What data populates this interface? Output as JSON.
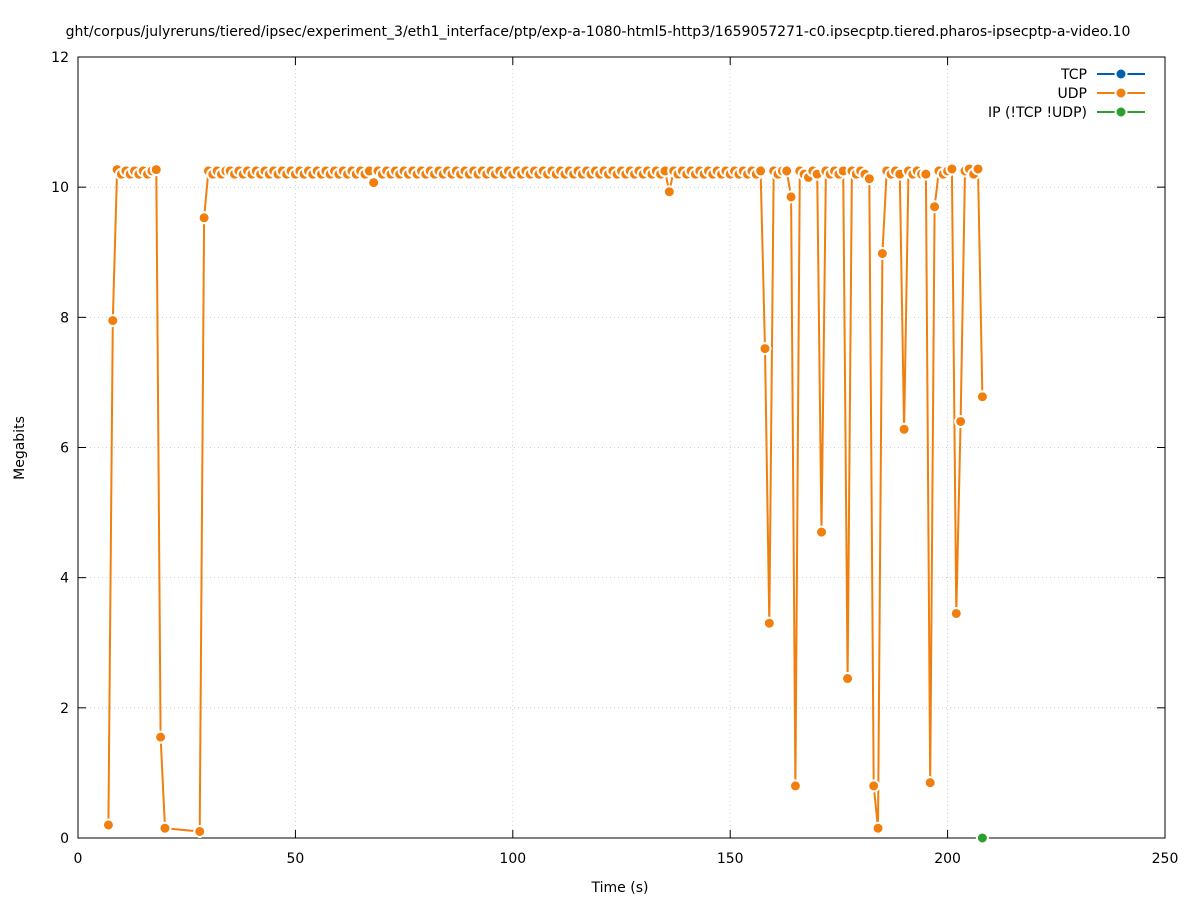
{
  "chart_data": {
    "type": "line",
    "title": "ght/corpus/julyreruns/tiered/ipsec/experiment_3/eth1_interface/ptp/exp-a-1080-html5-http3/1659057271-c0.ipsecptp.tiered.pharos-ipsecptp-a-video.10",
    "xlabel": "Time (s)",
    "ylabel": "Megabits",
    "xlim": [
      0,
      250
    ],
    "ylim": [
      0,
      12
    ],
    "xticks": [
      0,
      50,
      100,
      150,
      200,
      250
    ],
    "yticks": [
      0,
      2,
      4,
      6,
      8,
      10,
      12
    ],
    "grid": true,
    "legend_position": "top-right",
    "series": [
      {
        "name": "TCP",
        "color": "#0060ad",
        "points": []
      },
      {
        "name": "UDP",
        "color": "#f07f0e",
        "points": [
          [
            7,
            0.2
          ],
          [
            8,
            7.95
          ],
          [
            9,
            10.27
          ],
          [
            10,
            10.2
          ],
          [
            11,
            10.25
          ],
          [
            12,
            10.2
          ],
          [
            13,
            10.25
          ],
          [
            14,
            10.2
          ],
          [
            15,
            10.25
          ],
          [
            16,
            10.2
          ],
          [
            17,
            10.25
          ],
          [
            18,
            10.27
          ],
          [
            19,
            1.55
          ],
          [
            20,
            0.15
          ],
          [
            28,
            0.1
          ],
          [
            29,
            9.53
          ],
          [
            30,
            10.25
          ],
          [
            31,
            10.2
          ],
          [
            32,
            10.25
          ],
          [
            33,
            10.2
          ],
          [
            34,
            10.25
          ],
          [
            35,
            10.25
          ],
          [
            36,
            10.2
          ],
          [
            37,
            10.25
          ],
          [
            38,
            10.2
          ],
          [
            39,
            10.25
          ],
          [
            40,
            10.2
          ],
          [
            41,
            10.25
          ],
          [
            42,
            10.2
          ],
          [
            43,
            10.25
          ],
          [
            44,
            10.2
          ],
          [
            45,
            10.25
          ],
          [
            46,
            10.2
          ],
          [
            47,
            10.25
          ],
          [
            48,
            10.2
          ],
          [
            49,
            10.25
          ],
          [
            50,
            10.2
          ],
          [
            51,
            10.25
          ],
          [
            52,
            10.2
          ],
          [
            53,
            10.25
          ],
          [
            54,
            10.2
          ],
          [
            55,
            10.25
          ],
          [
            56,
            10.2
          ],
          [
            57,
            10.25
          ],
          [
            58,
            10.2
          ],
          [
            59,
            10.25
          ],
          [
            60,
            10.2
          ],
          [
            61,
            10.25
          ],
          [
            62,
            10.2
          ],
          [
            63,
            10.25
          ],
          [
            64,
            10.2
          ],
          [
            65,
            10.25
          ],
          [
            66,
            10.2
          ],
          [
            67,
            10.25
          ],
          [
            68,
            10.07
          ],
          [
            69,
            10.25
          ],
          [
            70,
            10.2
          ],
          [
            71,
            10.25
          ],
          [
            72,
            10.2
          ],
          [
            73,
            10.25
          ],
          [
            74,
            10.2
          ],
          [
            75,
            10.25
          ],
          [
            76,
            10.2
          ],
          [
            77,
            10.25
          ],
          [
            78,
            10.2
          ],
          [
            79,
            10.25
          ],
          [
            80,
            10.2
          ],
          [
            81,
            10.25
          ],
          [
            82,
            10.2
          ],
          [
            83,
            10.25
          ],
          [
            84,
            10.2
          ],
          [
            85,
            10.25
          ],
          [
            86,
            10.2
          ],
          [
            87,
            10.25
          ],
          [
            88,
            10.2
          ],
          [
            89,
            10.25
          ],
          [
            90,
            10.2
          ],
          [
            91,
            10.25
          ],
          [
            92,
            10.2
          ],
          [
            93,
            10.25
          ],
          [
            94,
            10.2
          ],
          [
            95,
            10.25
          ],
          [
            96,
            10.2
          ],
          [
            97,
            10.25
          ],
          [
            98,
            10.2
          ],
          [
            99,
            10.25
          ],
          [
            100,
            10.2
          ],
          [
            101,
            10.25
          ],
          [
            102,
            10.2
          ],
          [
            103,
            10.25
          ],
          [
            104,
            10.2
          ],
          [
            105,
            10.25
          ],
          [
            106,
            10.2
          ],
          [
            107,
            10.25
          ],
          [
            108,
            10.2
          ],
          [
            109,
            10.25
          ],
          [
            110,
            10.2
          ],
          [
            111,
            10.25
          ],
          [
            112,
            10.2
          ],
          [
            113,
            10.25
          ],
          [
            114,
            10.2
          ],
          [
            115,
            10.25
          ],
          [
            116,
            10.2
          ],
          [
            117,
            10.25
          ],
          [
            118,
            10.2
          ],
          [
            119,
            10.25
          ],
          [
            120,
            10.2
          ],
          [
            121,
            10.25
          ],
          [
            122,
            10.2
          ],
          [
            123,
            10.25
          ],
          [
            124,
            10.2
          ],
          [
            125,
            10.25
          ],
          [
            126,
            10.2
          ],
          [
            127,
            10.25
          ],
          [
            128,
            10.2
          ],
          [
            129,
            10.25
          ],
          [
            130,
            10.2
          ],
          [
            131,
            10.25
          ],
          [
            132,
            10.2
          ],
          [
            133,
            10.25
          ],
          [
            134,
            10.2
          ],
          [
            135,
            10.25
          ],
          [
            136,
            9.93
          ],
          [
            137,
            10.25
          ],
          [
            138,
            10.2
          ],
          [
            139,
            10.25
          ],
          [
            140,
            10.2
          ],
          [
            141,
            10.25
          ],
          [
            142,
            10.2
          ],
          [
            143,
            10.25
          ],
          [
            144,
            10.2
          ],
          [
            145,
            10.25
          ],
          [
            146,
            10.2
          ],
          [
            147,
            10.25
          ],
          [
            148,
            10.2
          ],
          [
            149,
            10.25
          ],
          [
            150,
            10.2
          ],
          [
            151,
            10.25
          ],
          [
            152,
            10.2
          ],
          [
            153,
            10.25
          ],
          [
            154,
            10.2
          ],
          [
            155,
            10.25
          ],
          [
            156,
            10.2
          ],
          [
            157,
            10.25
          ],
          [
            158,
            7.52
          ],
          [
            159,
            3.3
          ],
          [
            160,
            10.25
          ],
          [
            161,
            10.2
          ],
          [
            162,
            10.25
          ],
          [
            163,
            10.25
          ],
          [
            164,
            9.85
          ],
          [
            165,
            0.8
          ],
          [
            166,
            10.25
          ],
          [
            167,
            10.2
          ],
          [
            168,
            10.15
          ],
          [
            169,
            10.25
          ],
          [
            170,
            10.2
          ],
          [
            171,
            4.7
          ],
          [
            172,
            10.25
          ],
          [
            173,
            10.2
          ],
          [
            174,
            10.25
          ],
          [
            175,
            10.2
          ],
          [
            176,
            10.25
          ],
          [
            177,
            2.45
          ],
          [
            178,
            10.25
          ],
          [
            179,
            10.2
          ],
          [
            180,
            10.25
          ],
          [
            181,
            10.2
          ],
          [
            182,
            10.13
          ],
          [
            183,
            0.8
          ],
          [
            184,
            0.15
          ],
          [
            185,
            8.98
          ],
          [
            186,
            10.25
          ],
          [
            187,
            10.2
          ],
          [
            188,
            10.25
          ],
          [
            189,
            10.2
          ],
          [
            190,
            6.28
          ],
          [
            191,
            10.25
          ],
          [
            192,
            10.2
          ],
          [
            193,
            10.25
          ],
          [
            194,
            10.2
          ],
          [
            195,
            10.2
          ],
          [
            196,
            0.85
          ],
          [
            197,
            9.7
          ],
          [
            198,
            10.25
          ],
          [
            199,
            10.2
          ],
          [
            200,
            10.25
          ],
          [
            201,
            10.28
          ],
          [
            202,
            3.45
          ],
          [
            203,
            6.4
          ],
          [
            204,
            10.25
          ],
          [
            205,
            10.28
          ],
          [
            206,
            10.2
          ],
          [
            207,
            10.28
          ],
          [
            208,
            6.78
          ]
        ]
      },
      {
        "name": "IP (!TCP  !UDP)",
        "color": "#2ca02c",
        "points": [
          [
            208,
            0
          ]
        ]
      }
    ]
  }
}
